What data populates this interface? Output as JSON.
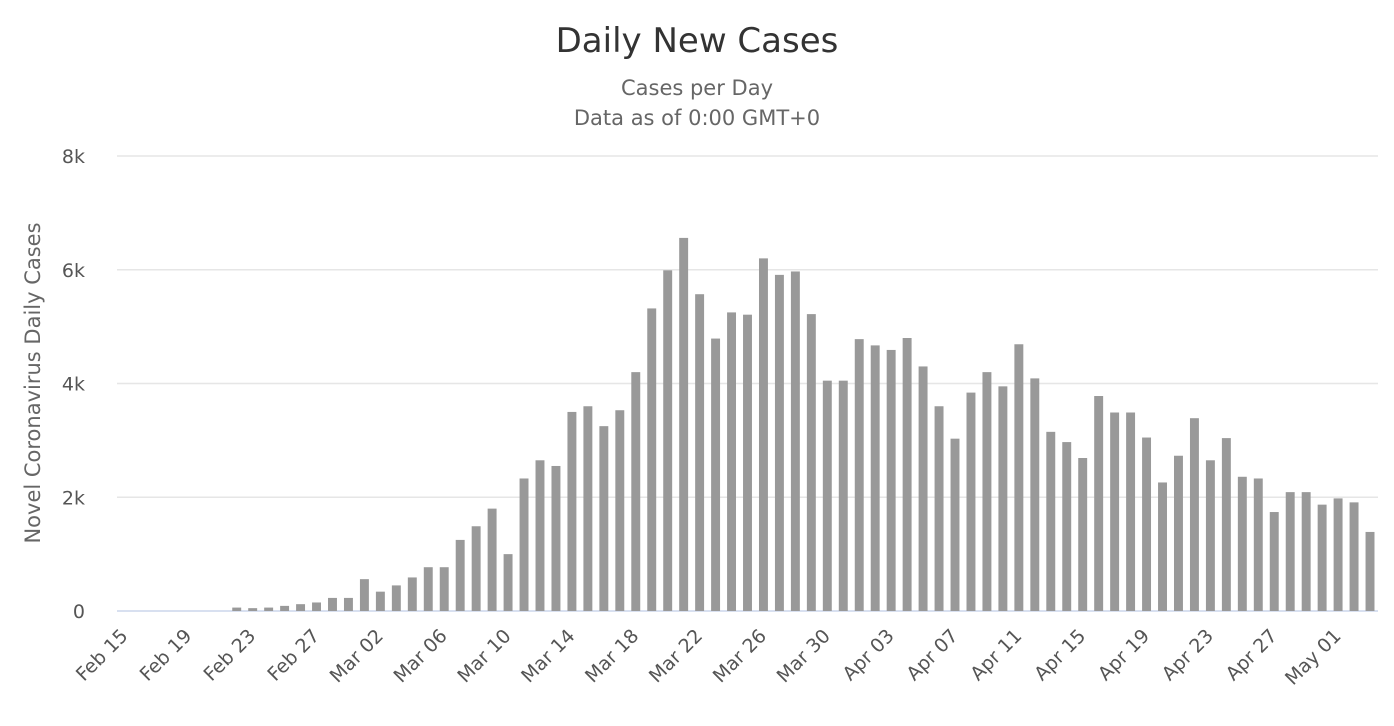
{
  "chart_data": {
    "type": "bar",
    "title": "Daily New Cases",
    "subtitle": [
      "Cases per Day",
      "Data as of 0:00 GMT+0"
    ],
    "y_label": "Novel Coronavirus Daily Cases",
    "categories": [
      "Feb 15",
      null,
      null,
      null,
      "Feb 19",
      null,
      null,
      null,
      "Feb 23",
      null,
      null,
      null,
      "Feb 27",
      null,
      null,
      null,
      "Mar 02",
      null,
      null,
      null,
      "Mar 06",
      null,
      null,
      null,
      "Mar 10",
      null,
      null,
      null,
      "Mar 14",
      null,
      null,
      null,
      "Mar 18",
      null,
      null,
      null,
      "Mar 22",
      null,
      null,
      null,
      "Mar 26",
      null,
      null,
      null,
      "Mar 30",
      null,
      null,
      null,
      "Apr 03",
      null,
      null,
      null,
      "Apr 07",
      null,
      null,
      null,
      "Apr 11",
      null,
      null,
      null,
      "Apr 15",
      null,
      null,
      null,
      "Apr 19",
      null,
      null,
      null,
      "Apr 23",
      null,
      null,
      null,
      "Apr 27",
      null,
      null,
      null,
      "May 01",
      null,
      null
    ],
    "values": [
      0,
      0,
      0,
      0,
      0,
      0,
      0,
      60,
      50,
      60,
      90,
      120,
      150,
      230,
      230,
      560,
      340,
      450,
      590,
      770,
      770,
      1250,
      1490,
      1800,
      1000,
      2330,
      2650,
      2550,
      3500,
      3600,
      3250,
      3530,
      4200,
      5320,
      5990,
      6560,
      5570,
      4790,
      5250,
      5210,
      6200,
      5910,
      5970,
      5220,
      4050,
      4050,
      4780,
      4670,
      4590,
      4800,
      4300,
      3600,
      3030,
      3840,
      4200,
      3950,
      4690,
      4090,
      3150,
      2970,
      2690,
      3780,
      3490,
      3490,
      3050,
      2260,
      2730,
      3390,
      2650,
      3040,
      2360,
      2330,
      1740,
      2090,
      2090,
      1870,
      1980,
      1910,
      1390
    ],
    "color": "#999999",
    "ylim": [
      0,
      8000
    ],
    "yticks": [
      0,
      {
        "value": 2000,
        "label": "2k"
      },
      {
        "value": 4000,
        "label": "4k"
      },
      {
        "value": 6000,
        "label": "6k"
      },
      {
        "value": 8000,
        "label": "8k"
      }
    ],
    "grid": true
  }
}
